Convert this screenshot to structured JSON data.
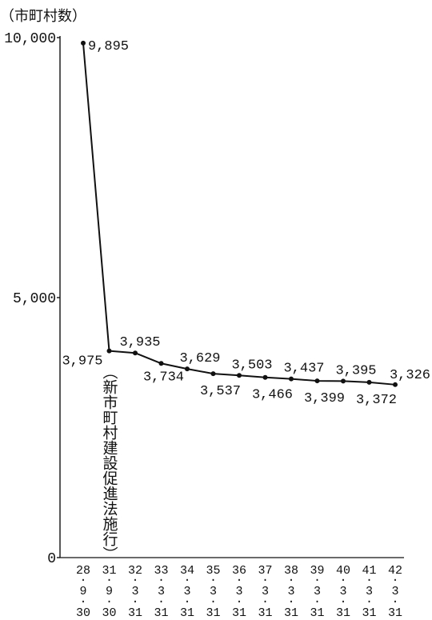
{
  "chart_data": {
    "type": "line",
    "title": "",
    "ylabel": "（市町村数）",
    "xlabel": "",
    "categories": [
      [
        "28",
        "9",
        "30"
      ],
      [
        "31",
        "9",
        "30"
      ],
      [
        "32",
        "3",
        "31"
      ],
      [
        "33",
        "3",
        "31"
      ],
      [
        "34",
        "3",
        "31"
      ],
      [
        "35",
        "3",
        "31"
      ],
      [
        "36",
        "3",
        "31"
      ],
      [
        "37",
        "3",
        "31"
      ],
      [
        "38",
        "3",
        "31"
      ],
      [
        "39",
        "3",
        "31"
      ],
      [
        "40",
        "3",
        "31"
      ],
      [
        "41",
        "3",
        "31"
      ],
      [
        "42",
        "3",
        "31"
      ]
    ],
    "category_separator": "·",
    "values": [
      9895,
      3975,
      3935,
      3734,
      3629,
      3537,
      3503,
      3466,
      3437,
      3399,
      3395,
      3372,
      3326
    ],
    "ylim": [
      0,
      10000
    ],
    "yticks": [
      0,
      5000,
      10000
    ],
    "grid": false,
    "legend": "none",
    "data_labels": true,
    "annotations": [
      {
        "category_index": 1,
        "text": "（新市町村建設促進法施行）"
      }
    ],
    "line_color": "#111111"
  }
}
